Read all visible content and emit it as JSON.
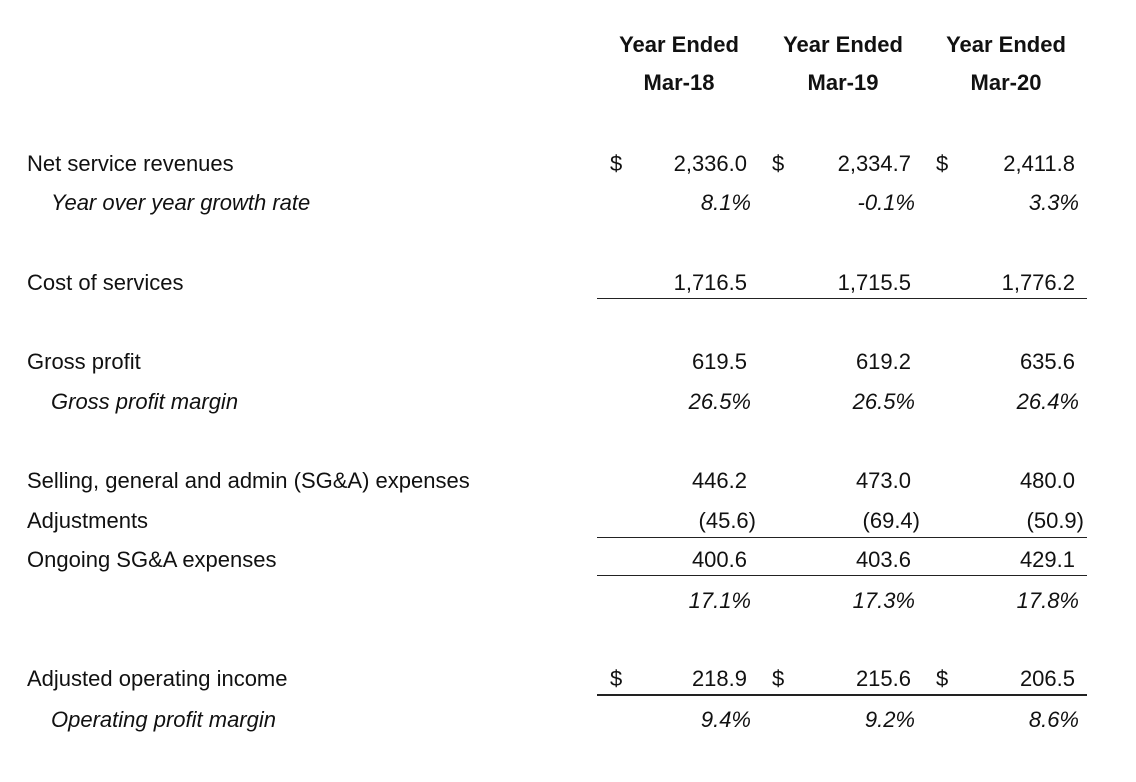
{
  "headers": [
    {
      "line1": "Year Ended",
      "line2": "Mar-18"
    },
    {
      "line1": "Year Ended",
      "line2": "Mar-19"
    },
    {
      "line1": "Year Ended",
      "line2": "Mar-20"
    }
  ],
  "currency_symbol": "$",
  "rows": {
    "net_service_revenues": {
      "label": "Net service revenues",
      "values": [
        "2,336.0",
        "2,334.7",
        "2,411.8"
      ]
    },
    "yoy_growth": {
      "label": "Year over year growth rate",
      "values": [
        "8.1%",
        "-0.1%",
        "3.3%"
      ]
    },
    "cost_of_services": {
      "label": "Cost of services",
      "values": [
        "1,716.5",
        "1,715.5",
        "1,776.2"
      ]
    },
    "gross_profit": {
      "label": "Gross profit",
      "values": [
        "619.5",
        "619.2",
        "635.6"
      ]
    },
    "gross_profit_margin": {
      "label": "Gross profit margin",
      "values": [
        "26.5%",
        "26.5%",
        "26.4%"
      ]
    },
    "sga_expenses": {
      "label": "Selling, general and admin (SG&A) expenses",
      "values": [
        "446.2",
        "473.0",
        "480.0"
      ]
    },
    "adjustments": {
      "label": "Adjustments",
      "values": [
        "(45.6)",
        "(69.4)",
        "(50.9)"
      ]
    },
    "ongoing_sga": {
      "label": "Ongoing SG&A expenses",
      "values": [
        "400.6",
        "403.6",
        "429.1"
      ]
    },
    "ongoing_sga_pct": {
      "label": "",
      "values": [
        "17.1%",
        "17.3%",
        "17.8%"
      ]
    },
    "adjusted_operating_income": {
      "label": "Adjusted operating income",
      "values": [
        "218.9",
        "215.6",
        "206.5"
      ]
    },
    "operating_profit_margin": {
      "label": "Operating profit margin",
      "values": [
        "9.4%",
        "9.2%",
        "8.6%"
      ]
    }
  }
}
